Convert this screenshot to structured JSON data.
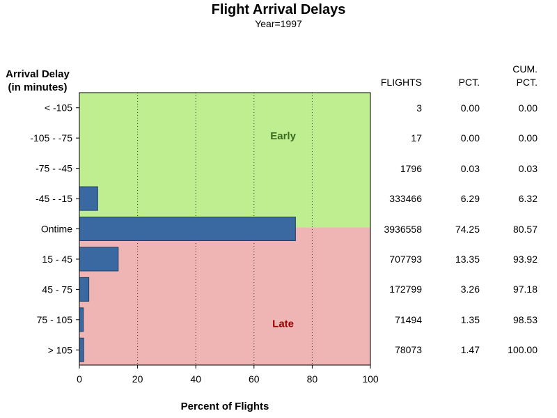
{
  "chart_data": {
    "type": "bar",
    "orientation": "horizontal",
    "title": "Flight Arrival Delays",
    "subtitle": "Year=1997",
    "ylabel_lines": [
      "Arrival Delay",
      "(in minutes)"
    ],
    "xlabel": "Percent of Flights",
    "xlim": [
      0,
      100
    ],
    "xticks": [
      0,
      20,
      40,
      60,
      80,
      100
    ],
    "grid": "vertical dotted",
    "categories": [
      "< -105",
      "-105 - -75",
      "-75 - -45",
      "-45 - -15",
      "Ontime",
      "15 - 45",
      "45 - 75",
      "75 - 105",
      "> 105"
    ],
    "values": [
      0.0,
      0.0,
      0.03,
      6.29,
      74.25,
      13.35,
      3.26,
      1.35,
      1.47
    ],
    "bar_color": "#3a68a0",
    "regions": [
      {
        "label": "Early",
        "color": "#bfee90",
        "text_color": "#3a6b1f",
        "categories": [
          "< -105",
          "-105 - -75",
          "-75 - -45",
          "-45 - -15"
        ]
      },
      {
        "label": "Late",
        "color": "#efb4b4",
        "text_color": "#9b0000",
        "categories": [
          "15 - 45",
          "45 - 75",
          "75 - 105",
          "> 105"
        ]
      }
    ],
    "table": {
      "headers": [
        {
          "lines": [
            "FLIGHTS"
          ]
        },
        {
          "lines": [
            "PCT."
          ]
        },
        {
          "lines": [
            "CUM.",
            "PCT."
          ]
        }
      ],
      "rows": [
        [
          "3",
          "0.00",
          "0.00"
        ],
        [
          "17",
          "0.00",
          "0.00"
        ],
        [
          "1796",
          "0.03",
          "0.03"
        ],
        [
          "333466",
          "6.29",
          "6.32"
        ],
        [
          "3936558",
          "74.25",
          "80.57"
        ],
        [
          "707793",
          "13.35",
          "93.92"
        ],
        [
          "172799",
          "3.26",
          "97.18"
        ],
        [
          "71494",
          "1.35",
          "98.53"
        ],
        [
          "78073",
          "1.47",
          "100.00"
        ]
      ]
    }
  }
}
